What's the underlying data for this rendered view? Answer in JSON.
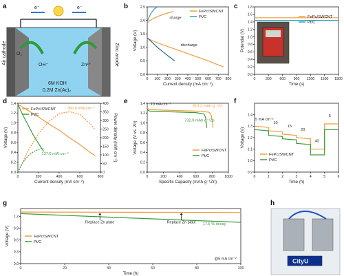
{
  "colors": {
    "fepc": "#f39a3b",
    "ptc": "#3a9a3a",
    "ptc_c": "#2aa7b8",
    "ptc_g": "#1f6f8f",
    "text": "#222222"
  },
  "panel_letters": [
    "a",
    "b",
    "c",
    "d",
    "e",
    "f",
    "g",
    "h"
  ],
  "panel_a": {
    "electron_left": "e⁻",
    "electron_right": "e⁻",
    "cathode_label": "Air cathode",
    "anode_label": "Zinc anode",
    "o2": "O₂",
    "oh": "OH⁻",
    "zn": "Zn²⁺",
    "electrolyte_line1": "6M KOH",
    "electrolyte_line2": "0.2M Zn(Ac)₂"
  },
  "panel_h": {
    "display_text": "CityU"
  },
  "chart_data": [
    {
      "panel": "b",
      "type": "line",
      "xlabel": "Current density (mA cm⁻²)",
      "ylabel": "Voltage (V)",
      "xlim": [
        0,
        800
      ],
      "ylim": [
        0,
        2.5
      ],
      "xticks": [
        "0",
        "100",
        "200",
        "300",
        "400",
        "500",
        "600",
        "700",
        "800"
      ],
      "yticks": [
        "0.0",
        "0.5",
        "1.0",
        "1.5",
        "2.0",
        "2.5"
      ],
      "legend": [
        "FePc/SWCNT",
        "Pt/C"
      ],
      "annotations": [
        "charge",
        "discharge"
      ],
      "series": [
        {
          "name": "FePc/SWCNT",
          "segment": "charge",
          "x": [
            0,
            20,
            60,
            120,
            200,
            260
          ],
          "y": [
            1.9,
            1.98,
            2.07,
            2.17,
            2.27,
            2.33
          ]
        },
        {
          "name": "Pt/C",
          "segment": "charge",
          "x": [
            0,
            15,
            40,
            70,
            100
          ],
          "y": [
            1.95,
            2.1,
            2.28,
            2.42,
            2.5
          ]
        },
        {
          "name": "FePc/SWCNT",
          "segment": "discharge",
          "x": [
            0,
            50,
            150,
            300,
            450,
            600,
            700,
            750
          ],
          "y": [
            1.35,
            1.25,
            1.1,
            0.9,
            0.7,
            0.5,
            0.35,
            0.28
          ]
        },
        {
          "name": "Pt/C",
          "segment": "discharge",
          "x": [
            0,
            50,
            100,
            150,
            200,
            270
          ],
          "y": [
            1.35,
            1.18,
            1.0,
            0.85,
            0.7,
            0.5
          ]
        }
      ]
    },
    {
      "panel": "c",
      "type": "line",
      "xlabel": "Time (s)",
      "ylabel": "Potential (V)",
      "xlim": [
        0,
        1800
      ],
      "ylim": [
        0,
        1.8
      ],
      "xticks": [
        "0",
        "300",
        "600",
        "900",
        "1200",
        "1500",
        "1800"
      ],
      "yticks": [
        "0.0",
        "0.2",
        "0.4",
        "0.6",
        "0.8",
        "1.0",
        "1.2",
        "1.4",
        "1.6",
        "1.8"
      ],
      "legend": [
        "FePc/SWCNT",
        "Pt/C"
      ],
      "series": [
        {
          "name": "FePc/SWCNT",
          "x": [
            0,
            1800
          ],
          "y": [
            1.51,
            1.51
          ]
        },
        {
          "name": "Pt/C",
          "x": [
            0,
            1800
          ],
          "y": [
            1.44,
            1.44
          ]
        }
      ]
    },
    {
      "panel": "d",
      "type": "line",
      "xlabel": "Current density (mA cm⁻²)",
      "ylabel": "Voltage (V)",
      "ylabel2": "Power density (mW cm⁻²)",
      "xlim": [
        0,
        800
      ],
      "ylim": [
        0,
        1.4
      ],
      "y2lim": [
        0,
        400
      ],
      "xticks": [
        "0",
        "200",
        "400",
        "600",
        "800"
      ],
      "yticks": [
        "0.0",
        "0.2",
        "0.4",
        "0.6",
        "0.8",
        "1.0",
        "1.2",
        "1.4"
      ],
      "y2ticks": [
        "0",
        "50",
        "100",
        "150",
        "200",
        "250",
        "300",
        "350",
        "400"
      ],
      "legend": [
        "FePc/SWCNT",
        "Pt/C"
      ],
      "annotations": [
        "350.6 mW cm⁻²",
        "137.6 mW cm⁻²"
      ],
      "series": [
        {
          "name": "FePc/SWCNT",
          "kind": "voltage",
          "x": [
            0,
            100,
            200,
            300,
            400,
            500,
            600,
            700,
            750
          ],
          "y": [
            1.38,
            1.25,
            1.12,
            0.98,
            0.85,
            0.7,
            0.56,
            0.4,
            0.33
          ]
        },
        {
          "name": "Pt/C",
          "kind": "voltage",
          "x": [
            0,
            50,
            100,
            150,
            200,
            250
          ],
          "y": [
            1.38,
            1.15,
            0.95,
            0.75,
            0.58,
            0.42
          ]
        },
        {
          "name": "FePc/SWCNT",
          "kind": "power",
          "x": [
            0,
            100,
            200,
            300,
            400,
            500,
            600,
            700,
            750
          ],
          "y": [
            0,
            125,
            224,
            294,
            340,
            350.6,
            336,
            280,
            247
          ]
        },
        {
          "name": "Pt/C",
          "kind": "power",
          "x": [
            0,
            50,
            100,
            150,
            200,
            230,
            250
          ],
          "y": [
            0,
            58,
            95,
            118,
            132,
            137.6,
            135
          ]
        }
      ]
    },
    {
      "panel": "e",
      "type": "line",
      "xlabel": "Specific Capacity (mAh·g⁻¹Zn)",
      "ylabel": "Voltage (V vs. Zn)",
      "xlim": [
        0,
        1000
      ],
      "ylim": [
        0,
        1.4
      ],
      "xticks": [
        "0",
        "200",
        "400",
        "600",
        "800",
        "1000"
      ],
      "yticks": [
        "0.0",
        "0.2",
        "0.4",
        "0.6",
        "0.8",
        "1.0",
        "1.2",
        "1.4"
      ],
      "legend": [
        "FePc/SWCNT",
        "Pt/C"
      ],
      "annotations": [
        "10 mA cm⁻²",
        "810.2 mAh·g⁻¹Zn",
        "732.9 mAh·g⁻¹Zn"
      ],
      "series": [
        {
          "name": "FePc/SWCNT",
          "x": [
            0,
            30,
            200,
            400,
            600,
            760,
            790,
            805,
            810.2
          ],
          "y": [
            1.3,
            1.27,
            1.26,
            1.25,
            1.24,
            1.22,
            1.15,
            1.0,
            0.9
          ]
        },
        {
          "name": "Pt/C",
          "x": [
            0,
            30,
            200,
            400,
            600,
            700,
            720,
            732.9
          ],
          "y": [
            1.27,
            1.24,
            1.23,
            1.22,
            1.21,
            1.18,
            1.1,
            0.9
          ]
        }
      ]
    },
    {
      "panel": "f",
      "type": "line",
      "xlabel": "Time (h)",
      "ylabel": "Voltage (V)",
      "xlim": [
        0,
        6
      ],
      "ylim": [
        0.9,
        1.5
      ],
      "xticks": [
        "0",
        "1",
        "2",
        "3",
        "4",
        "5",
        "6"
      ],
      "yticks": [
        "0.9",
        "1.0",
        "1.1",
        "1.2",
        "1.3",
        "1.4"
      ],
      "legend": [
        "FePc/SWCNT",
        "Pt/C"
      ],
      "annotations": [
        "5 mA cm⁻²",
        "10",
        "15",
        "20",
        "40",
        "5"
      ],
      "series": [
        {
          "name": "FePc/SWCNT",
          "x": [
            0,
            1,
            1,
            2,
            2,
            3,
            3,
            4,
            4,
            5,
            5,
            6
          ],
          "y": [
            1.3,
            1.29,
            1.26,
            1.25,
            1.23,
            1.22,
            1.2,
            1.19,
            1.1,
            1.1,
            1.32,
            1.32
          ]
        },
        {
          "name": "Pt/C",
          "x": [
            0,
            1,
            1,
            2,
            2,
            3,
            3,
            4,
            4,
            5,
            5,
            6
          ],
          "y": [
            1.27,
            1.26,
            1.22,
            1.21,
            1.19,
            1.18,
            1.15,
            1.14,
            1.05,
            1.05,
            1.27,
            1.27
          ]
        }
      ]
    },
    {
      "panel": "g",
      "type": "line",
      "xlabel": "Time (h)",
      "ylabel": "Voltage (V)",
      "xlim": [
        0,
        100
      ],
      "ylim": [
        0,
        1.4
      ],
      "xticks": [
        "0",
        "20",
        "40",
        "60",
        "80",
        "100"
      ],
      "yticks": [
        "0.0",
        "0.3",
        "0.6",
        "0.9",
        "1.2"
      ],
      "legend": [
        "FePc/SWCNT",
        "Pt/C"
      ],
      "annotations": [
        "Replace Zn plate",
        "Replace Zn plate",
        "17.5 % decay",
        "@5 mA cm⁻²"
      ],
      "series": [
        {
          "name": "FePc/SWCNT",
          "x": [
            0,
            100
          ],
          "y": [
            1.31,
            1.3
          ]
        },
        {
          "name": "Pt/C",
          "x": [
            0,
            100
          ],
          "y": [
            1.27,
            1.05
          ]
        }
      ]
    }
  ]
}
